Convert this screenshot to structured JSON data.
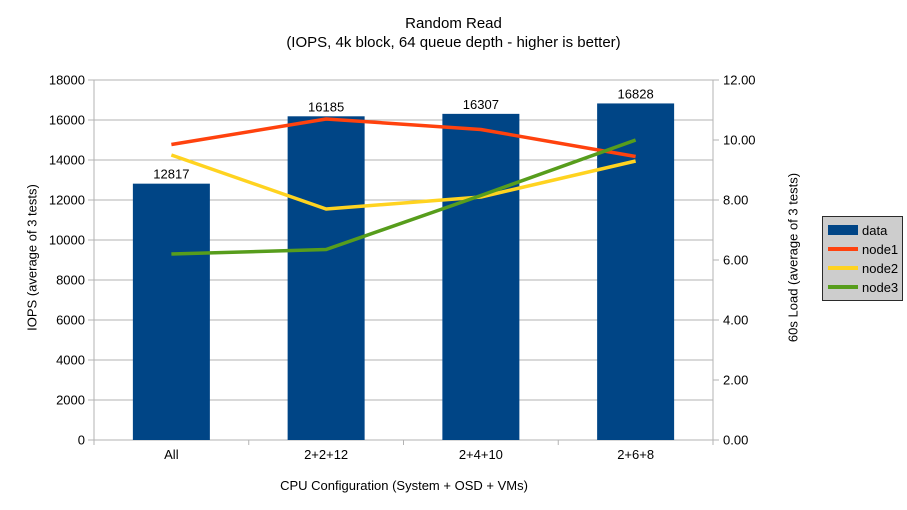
{
  "chart_data": {
    "type": "combo",
    "title": "Random Read",
    "subtitle": "(IOPS, 4k block, 64 queue depth - higher is better)",
    "xlabel": "CPU Configuration (System + OSD + VMs)",
    "categories": [
      "All",
      "2+2+12",
      "2+4+10",
      "2+6+8"
    ],
    "left_axis": {
      "label": "IOPS (average of 3 tests)",
      "min": 0,
      "max": 18000,
      "step": 2000,
      "tick_labels": [
        "0",
        "2000",
        "4000",
        "6000",
        "8000",
        "10000",
        "12000",
        "14000",
        "16000",
        "18000"
      ]
    },
    "right_axis": {
      "label": "60s Load (average of 3 tests)",
      "min": 0,
      "max": 12,
      "step": 2,
      "tick_labels": [
        "0.00",
        "2.00",
        "4.00",
        "6.00",
        "8.00",
        "10.00",
        "12.00"
      ]
    },
    "bar_series": {
      "name": "data",
      "axis": "left",
      "color": "#004586",
      "values": [
        12817,
        16185,
        16307,
        16828
      ],
      "labels": [
        "12817",
        "16185",
        "16307",
        "16828"
      ]
    },
    "line_series": [
      {
        "name": "node1",
        "axis": "right",
        "color": "#FF420E",
        "values": [
          9.85,
          10.7,
          10.35,
          9.45
        ]
      },
      {
        "name": "node2",
        "axis": "right",
        "color": "#FFD320",
        "values": [
          9.5,
          7.7,
          8.1,
          9.3
        ]
      },
      {
        "name": "node3",
        "axis": "right",
        "color": "#579D1C",
        "values": [
          6.2,
          6.35,
          8.15,
          10.0
        ]
      }
    ],
    "legend": {
      "position": "right",
      "items": [
        "data",
        "node1",
        "node2",
        "node3"
      ]
    },
    "grid": {
      "horizontal": true,
      "vertical": false,
      "color": "#b3b3b3"
    }
  },
  "colors": {
    "background": "#ffffff",
    "text": "#000000",
    "legend_background": "#cdcdcd",
    "legend_border": "#2b2b2b"
  }
}
